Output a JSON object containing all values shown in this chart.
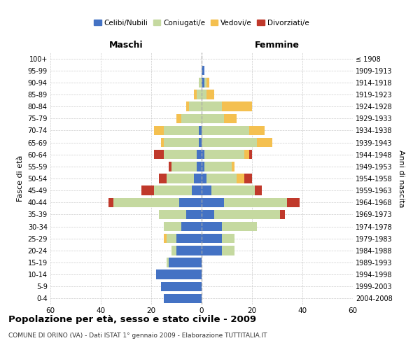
{
  "age_groups": [
    "0-4",
    "5-9",
    "10-14",
    "15-19",
    "20-24",
    "25-29",
    "30-34",
    "35-39",
    "40-44",
    "45-49",
    "50-54",
    "55-59",
    "60-64",
    "65-69",
    "70-74",
    "75-79",
    "80-84",
    "85-89",
    "90-94",
    "95-99",
    "100+"
  ],
  "birth_years": [
    "2004-2008",
    "1999-2003",
    "1994-1998",
    "1989-1993",
    "1984-1988",
    "1979-1983",
    "1974-1978",
    "1969-1973",
    "1964-1968",
    "1959-1963",
    "1954-1958",
    "1949-1953",
    "1944-1948",
    "1939-1943",
    "1934-1938",
    "1929-1933",
    "1924-1928",
    "1919-1923",
    "1914-1918",
    "1909-1913",
    "≤ 1908"
  ],
  "maschi_celibi": [
    15,
    16,
    18,
    13,
    10,
    10,
    8,
    6,
    9,
    4,
    3,
    2,
    2,
    1,
    1,
    0,
    0,
    0,
    0,
    0,
    0
  ],
  "maschi_coniugati": [
    0,
    0,
    0,
    1,
    2,
    4,
    7,
    11,
    26,
    15,
    11,
    10,
    13,
    14,
    14,
    8,
    5,
    2,
    1,
    0,
    0
  ],
  "maschi_vedovi": [
    0,
    0,
    0,
    0,
    0,
    1,
    0,
    0,
    0,
    0,
    0,
    0,
    0,
    1,
    4,
    2,
    1,
    1,
    0,
    0,
    0
  ],
  "maschi_divorziati": [
    0,
    0,
    0,
    0,
    0,
    0,
    0,
    0,
    2,
    5,
    3,
    1,
    4,
    0,
    0,
    0,
    0,
    0,
    0,
    0,
    0
  ],
  "femmine_celibi": [
    0,
    0,
    0,
    0,
    8,
    8,
    8,
    5,
    9,
    4,
    2,
    1,
    1,
    0,
    0,
    0,
    0,
    0,
    1,
    1,
    0
  ],
  "femmine_coniugati": [
    0,
    0,
    0,
    0,
    5,
    5,
    14,
    26,
    25,
    17,
    12,
    11,
    16,
    22,
    19,
    9,
    8,
    2,
    1,
    0,
    0
  ],
  "femmine_vedovi": [
    0,
    0,
    0,
    0,
    0,
    0,
    0,
    0,
    0,
    0,
    3,
    1,
    2,
    6,
    6,
    5,
    12,
    3,
    1,
    0,
    0
  ],
  "femmine_divorziati": [
    0,
    0,
    0,
    0,
    0,
    0,
    0,
    2,
    5,
    3,
    3,
    0,
    1,
    0,
    0,
    0,
    0,
    0,
    0,
    0,
    0
  ],
  "colors": {
    "celibi": "#4472c4",
    "coniugati": "#c5d9a0",
    "vedovi": "#f4c050",
    "divorziati": "#c0392b"
  },
  "title": "Popolazione per età, sesso e stato civile - 2009",
  "subtitle": "COMUNE DI ORINO (VA) - Dati ISTAT 1° gennaio 2009 - Elaborazione TUTTITALIA.IT",
  "xlabel_left": "Maschi",
  "xlabel_right": "Femmine",
  "ylabel_left": "Fasce di età",
  "ylabel_right": "Anni di nascita",
  "xlim": 60,
  "background_color": "#ffffff"
}
